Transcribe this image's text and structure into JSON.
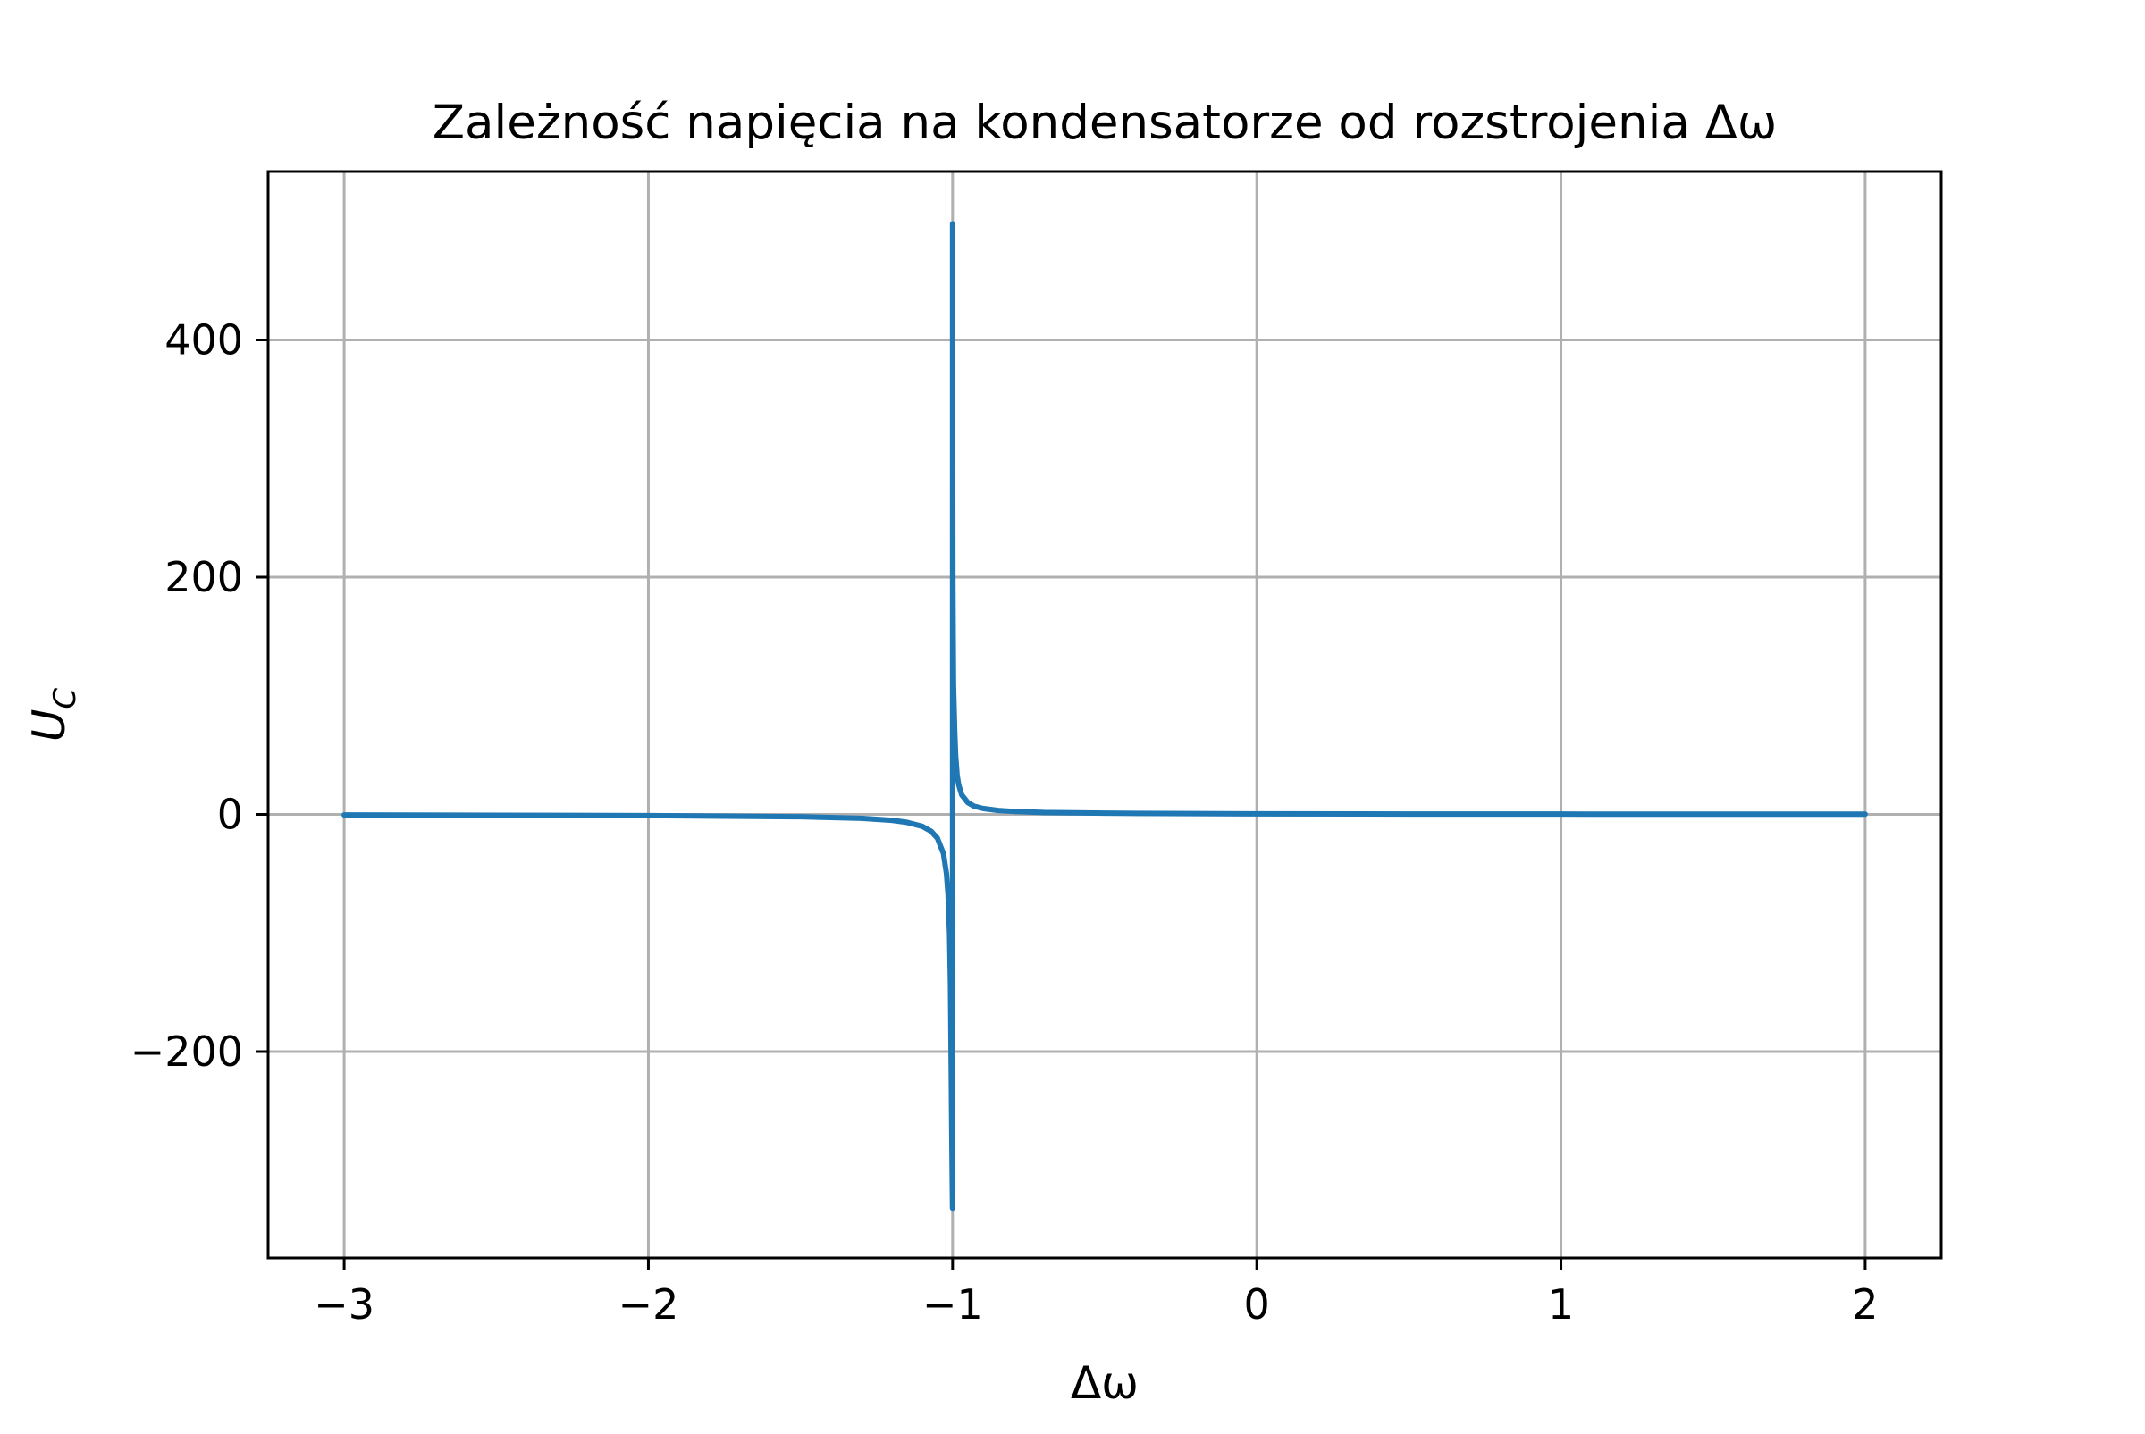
{
  "chart_data": {
    "type": "line",
    "title": "Zależność napięcia na kondensatorze od rozstrojenia Δω",
    "xlabel": "Δω",
    "ylabel": "U",
    "ylabel_subscript": "C",
    "xlim": [
      -3.25,
      2.25
    ],
    "ylim": [
      -374,
      542
    ],
    "x_ticks": [
      {
        "value": -3,
        "label": "−3"
      },
      {
        "value": -2,
        "label": "−2"
      },
      {
        "value": -1,
        "label": "−1"
      },
      {
        "value": 0,
        "label": "0"
      },
      {
        "value": 1,
        "label": "1"
      },
      {
        "value": 2,
        "label": "2"
      }
    ],
    "y_ticks": [
      {
        "value": -200,
        "label": "−200"
      },
      {
        "value": 0,
        "label": "0"
      },
      {
        "value": 200,
        "label": "200"
      },
      {
        "value": 400,
        "label": "400"
      }
    ],
    "grid": true,
    "series": [
      {
        "color": "#1f77b4",
        "x": [
          -3.0,
          -2.5,
          -2.0,
          -1.5,
          -1.3,
          -1.2,
          -1.15,
          -1.1,
          -1.07,
          -1.05,
          -1.03,
          -1.02,
          -1.015,
          -1.01,
          -1.007,
          -1.005,
          -1.003,
          -1.0015,
          -1.0005,
          -1.0002,
          -1.0,
          -1.0,
          -0.9998,
          -0.9995,
          -0.999,
          -0.998,
          -0.997,
          -0.995,
          -0.993,
          -0.99,
          -0.985,
          -0.98,
          -0.97,
          -0.95,
          -0.93,
          -0.9,
          -0.85,
          -0.8,
          -0.7,
          -0.5,
          0.0,
          0.5,
          1.0,
          1.5,
          2.0
        ],
        "y": [
          -0.5,
          -0.7,
          -1.0,
          -2.0,
          -3.3,
          -5.0,
          -6.7,
          -10.0,
          -14.3,
          -20.0,
          -33.0,
          -50.0,
          -67.0,
          -100.0,
          -143.0,
          -200.0,
          -260.0,
          -300.0,
          -325.0,
          -332.0,
          -332.0,
          498.0,
          498.0,
          300.0,
          200.0,
          150.0,
          110.0,
          90.0,
          70.0,
          50.0,
          33.0,
          25.0,
          16.5,
          10.0,
          7.0,
          5.0,
          3.3,
          2.5,
          1.6,
          1.0,
          0.5,
          0.3,
          0.25,
          0.2,
          0.17
        ]
      }
    ]
  }
}
